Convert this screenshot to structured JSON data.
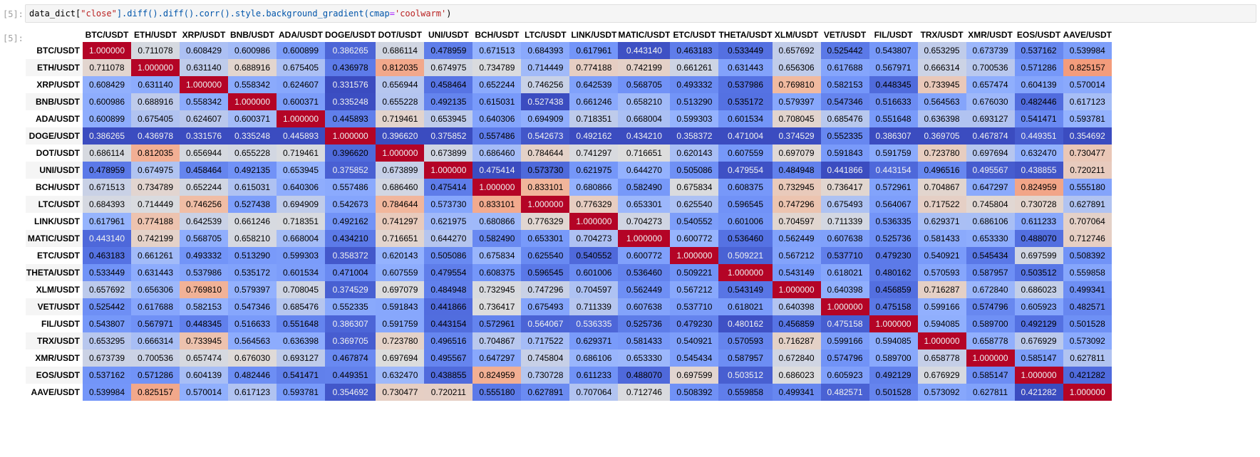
{
  "notebook": {
    "input_prompt": "[5]:",
    "output_prompt": "[5]:",
    "code": {
      "t1": "data_dict[",
      "t2": "\"close\"",
      "t3": "].diff().diff().corr().style.background_gradient(cmap",
      "t4": "=",
      "t5": "'coolwarm'",
      "t6": ")"
    }
  },
  "style": {
    "cmap": "coolwarm",
    "cold_color": "#3b4cc0",
    "neutral_color": "#dddddd",
    "hot_color": "#b40426"
  },
  "columns": [
    "BTC/USDT",
    "ETH/USDT",
    "XRP/USDT",
    "BNB/USDT",
    "ADA/USDT",
    "DOGE/USDT",
    "DOT/USDT",
    "UNI/USDT",
    "BCH/USDT",
    "LTC/USDT",
    "LINK/USDT",
    "MATIC/USDT",
    "ETC/USDT",
    "THETA/USDT",
    "XLM/USDT",
    "VET/USDT",
    "FIL/USDT",
    "TRX/USDT",
    "XMR/USDT",
    "EOS/USDT",
    "AAVE/USDT"
  ],
  "rows": [
    {
      "label": "BTC/USDT",
      "values": [
        "1.000000",
        "0.711078",
        "0.608429",
        "0.600986",
        "0.600899",
        "0.386265",
        "0.686114",
        "0.478959",
        "0.671513",
        "0.684393",
        "0.617961",
        "0.443140",
        "0.463183",
        "0.533449",
        "0.657692",
        "0.525442",
        "0.543807",
        "0.653295",
        "0.673739",
        "0.537162",
        "0.539984"
      ]
    },
    {
      "label": "ETH/USDT",
      "values": [
        "0.711078",
        "1.000000",
        "0.631140",
        "0.688916",
        "0.675405",
        "0.436978",
        "0.812035",
        "0.674975",
        "0.734789",
        "0.714449",
        "0.774188",
        "0.742199",
        "0.661261",
        "0.631443",
        "0.656306",
        "0.617688",
        "0.567971",
        "0.666314",
        "0.700536",
        "0.571286",
        "0.825157"
      ]
    },
    {
      "label": "XRP/USDT",
      "values": [
        "0.608429",
        "0.631140",
        "1.000000",
        "0.558342",
        "0.624607",
        "0.331576",
        "0.656944",
        "0.458464",
        "0.652244",
        "0.746256",
        "0.642539",
        "0.568705",
        "0.493332",
        "0.537986",
        "0.769810",
        "0.582153",
        "0.448345",
        "0.733945",
        "0.657474",
        "0.604139",
        "0.570014"
      ]
    },
    {
      "label": "BNB/USDT",
      "values": [
        "0.600986",
        "0.688916",
        "0.558342",
        "1.000000",
        "0.600371",
        "0.335248",
        "0.655228",
        "0.492135",
        "0.615031",
        "0.527438",
        "0.661246",
        "0.658210",
        "0.513290",
        "0.535172",
        "0.579397",
        "0.547346",
        "0.516633",
        "0.564563",
        "0.676030",
        "0.482446",
        "0.617123"
      ]
    },
    {
      "label": "ADA/USDT",
      "values": [
        "0.600899",
        "0.675405",
        "0.624607",
        "0.600371",
        "1.000000",
        "0.445893",
        "0.719461",
        "0.653945",
        "0.640306",
        "0.694909",
        "0.718351",
        "0.668004",
        "0.599303",
        "0.601534",
        "0.708045",
        "0.685476",
        "0.551648",
        "0.636398",
        "0.693127",
        "0.541471",
        "0.593781"
      ]
    },
    {
      "label": "DOGE/USDT",
      "values": [
        "0.386265",
        "0.436978",
        "0.331576",
        "0.335248",
        "0.445893",
        "1.000000",
        "0.396620",
        "0.375852",
        "0.557486",
        "0.542673",
        "0.492162",
        "0.434210",
        "0.358372",
        "0.471004",
        "0.374529",
        "0.552335",
        "0.386307",
        "0.369705",
        "0.467874",
        "0.449351",
        "0.354692"
      ]
    },
    {
      "label": "DOT/USDT",
      "values": [
        "0.686114",
        "0.812035",
        "0.656944",
        "0.655228",
        "0.719461",
        "0.396620",
        "1.000000",
        "0.673899",
        "0.686460",
        "0.784644",
        "0.741297",
        "0.716651",
        "0.620143",
        "0.607559",
        "0.697079",
        "0.591843",
        "0.591759",
        "0.723780",
        "0.697694",
        "0.632470",
        "0.730477"
      ]
    },
    {
      "label": "UNI/USDT",
      "values": [
        "0.478959",
        "0.674975",
        "0.458464",
        "0.492135",
        "0.653945",
        "0.375852",
        "0.673899",
        "1.000000",
        "0.475414",
        "0.573730",
        "0.621975",
        "0.644270",
        "0.505086",
        "0.479554",
        "0.484948",
        "0.441866",
        "0.443154",
        "0.496516",
        "0.495567",
        "0.438855",
        "0.720211"
      ]
    },
    {
      "label": "BCH/USDT",
      "values": [
        "0.671513",
        "0.734789",
        "0.652244",
        "0.615031",
        "0.640306",
        "0.557486",
        "0.686460",
        "0.475414",
        "1.000000",
        "0.833101",
        "0.680866",
        "0.582490",
        "0.675834",
        "0.608375",
        "0.732945",
        "0.736417",
        "0.572961",
        "0.704867",
        "0.647297",
        "0.824959",
        "0.555180"
      ]
    },
    {
      "label": "LTC/USDT",
      "values": [
        "0.684393",
        "0.714449",
        "0.746256",
        "0.527438",
        "0.694909",
        "0.542673",
        "0.784644",
        "0.573730",
        "0.833101",
        "1.000000",
        "0.776329",
        "0.653301",
        "0.625540",
        "0.596545",
        "0.747296",
        "0.675493",
        "0.564067",
        "0.717522",
        "0.745804",
        "0.730728",
        "0.627891"
      ]
    },
    {
      "label": "LINK/USDT",
      "values": [
        "0.617961",
        "0.774188",
        "0.642539",
        "0.661246",
        "0.718351",
        "0.492162",
        "0.741297",
        "0.621975",
        "0.680866",
        "0.776329",
        "1.000000",
        "0.704273",
        "0.540552",
        "0.601006",
        "0.704597",
        "0.711339",
        "0.536335",
        "0.629371",
        "0.686106",
        "0.611233",
        "0.707064"
      ]
    },
    {
      "label": "MATIC/USDT",
      "values": [
        "0.443140",
        "0.742199",
        "0.568705",
        "0.658210",
        "0.668004",
        "0.434210",
        "0.716651",
        "0.644270",
        "0.582490",
        "0.653301",
        "0.704273",
        "1.000000",
        "0.600772",
        "0.536460",
        "0.562449",
        "0.607638",
        "0.525736",
        "0.581433",
        "0.653330",
        "0.488070",
        "0.712746"
      ]
    },
    {
      "label": "ETC/USDT",
      "values": [
        "0.463183",
        "0.661261",
        "0.493332",
        "0.513290",
        "0.599303",
        "0.358372",
        "0.620143",
        "0.505086",
        "0.675834",
        "0.625540",
        "0.540552",
        "0.600772",
        "1.000000",
        "0.509221",
        "0.567212",
        "0.537710",
        "0.479230",
        "0.540921",
        "0.545434",
        "0.697599",
        "0.508392"
      ]
    },
    {
      "label": "THETA/USDT",
      "values": [
        "0.533449",
        "0.631443",
        "0.537986",
        "0.535172",
        "0.601534",
        "0.471004",
        "0.607559",
        "0.479554",
        "0.608375",
        "0.596545",
        "0.601006",
        "0.536460",
        "0.509221",
        "1.000000",
        "0.543149",
        "0.618021",
        "0.480162",
        "0.570593",
        "0.587957",
        "0.503512",
        "0.559858"
      ]
    },
    {
      "label": "XLM/USDT",
      "values": [
        "0.657692",
        "0.656306",
        "0.769810",
        "0.579397",
        "0.708045",
        "0.374529",
        "0.697079",
        "0.484948",
        "0.732945",
        "0.747296",
        "0.704597",
        "0.562449",
        "0.567212",
        "0.543149",
        "1.000000",
        "0.640398",
        "0.456859",
        "0.716287",
        "0.672840",
        "0.686023",
        "0.499341"
      ]
    },
    {
      "label": "VET/USDT",
      "values": [
        "0.525442",
        "0.617688",
        "0.582153",
        "0.547346",
        "0.685476",
        "0.552335",
        "0.591843",
        "0.441866",
        "0.736417",
        "0.675493",
        "0.711339",
        "0.607638",
        "0.537710",
        "0.618021",
        "0.640398",
        "1.000000",
        "0.475158",
        "0.599166",
        "0.574796",
        "0.605923",
        "0.482571"
      ]
    },
    {
      "label": "FIL/USDT",
      "values": [
        "0.543807",
        "0.567971",
        "0.448345",
        "0.516633",
        "0.551648",
        "0.386307",
        "0.591759",
        "0.443154",
        "0.572961",
        "0.564067",
        "0.536335",
        "0.525736",
        "0.479230",
        "0.480162",
        "0.456859",
        "0.475158",
        "1.000000",
        "0.594085",
        "0.589700",
        "0.492129",
        "0.501528"
      ]
    },
    {
      "label": "TRX/USDT",
      "values": [
        "0.653295",
        "0.666314",
        "0.733945",
        "0.564563",
        "0.636398",
        "0.369705",
        "0.723780",
        "0.496516",
        "0.704867",
        "0.717522",
        "0.629371",
        "0.581433",
        "0.540921",
        "0.570593",
        "0.716287",
        "0.599166",
        "0.594085",
        "1.000000",
        "0.658778",
        "0.676929",
        "0.573092"
      ]
    },
    {
      "label": "XMR/USDT",
      "values": [
        "0.673739",
        "0.700536",
        "0.657474",
        "0.676030",
        "0.693127",
        "0.467874",
        "0.697694",
        "0.495567",
        "0.647297",
        "0.745804",
        "0.686106",
        "0.653330",
        "0.545434",
        "0.587957",
        "0.672840",
        "0.574796",
        "0.589700",
        "0.658778",
        "1.000000",
        "0.585147",
        "0.627811"
      ]
    },
    {
      "label": "EOS/USDT",
      "values": [
        "0.537162",
        "0.571286",
        "0.604139",
        "0.482446",
        "0.541471",
        "0.449351",
        "0.632470",
        "0.438855",
        "0.824959",
        "0.730728",
        "0.611233",
        "0.488070",
        "0.697599",
        "0.503512",
        "0.686023",
        "0.605923",
        "0.492129",
        "0.676929",
        "0.585147",
        "1.000000",
        "0.421282"
      ]
    },
    {
      "label": "AAVE/USDT",
      "values": [
        "0.539984",
        "0.825157",
        "0.570014",
        "0.617123",
        "0.593781",
        "0.354692",
        "0.730477",
        "0.720211",
        "0.555180",
        "0.627891",
        "0.707064",
        "0.712746",
        "0.508392",
        "0.559858",
        "0.499341",
        "0.482571",
        "0.501528",
        "0.573092",
        "0.627811",
        "0.421282",
        "1.000000"
      ]
    }
  ]
}
